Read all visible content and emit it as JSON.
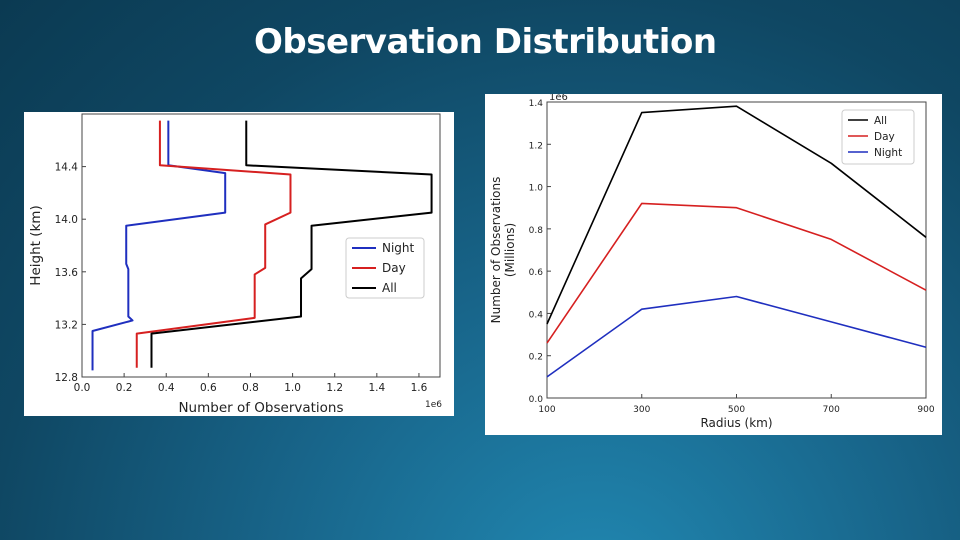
{
  "slide": {
    "title": "Observation Distribution"
  },
  "chart_data": [
    {
      "type": "line",
      "title": "",
      "xlabel": "Number of Observations",
      "ylabel": "Height (km)",
      "x_multiplier": "1e6",
      "xlim": [
        0.0,
        1.7
      ],
      "ylim": [
        12.8,
        14.8
      ],
      "xticks": [
        "0.0",
        "0.2",
        "0.4",
        "0.6",
        "0.8",
        "1.0",
        "1.2",
        "1.4",
        "1.6"
      ],
      "yticks": [
        "12.8",
        "13.2",
        "13.6",
        "14.0",
        "14.4"
      ],
      "xtick_values": [
        0.0,
        0.2,
        0.4,
        0.6,
        0.8,
        1.0,
        1.2,
        1.4,
        1.6
      ],
      "ytick_values": [
        12.8,
        13.2,
        13.6,
        14.0,
        14.4
      ],
      "grid": false,
      "legend_position": "center-right",
      "series": [
        {
          "name": "Night",
          "color": "#1f2fbf",
          "points": [
            [
              0.05,
              12.85
            ],
            [
              0.05,
              13.15
            ],
            [
              0.24,
              13.23
            ],
            [
              0.22,
              13.26
            ],
            [
              0.22,
              13.62
            ],
            [
              0.21,
              13.66
            ],
            [
              0.21,
              13.95
            ],
            [
              0.68,
              14.05
            ],
            [
              0.68,
              14.35
            ],
            [
              0.41,
              14.41
            ],
            [
              0.41,
              14.75
            ]
          ]
        },
        {
          "name": "Day",
          "color": "#d62020",
          "points": [
            [
              0.26,
              12.87
            ],
            [
              0.26,
              13.13
            ],
            [
              0.82,
              13.25
            ],
            [
              0.82,
              13.58
            ],
            [
              0.87,
              13.63
            ],
            [
              0.87,
              13.96
            ],
            [
              0.99,
              14.05
            ],
            [
              0.99,
              14.34
            ],
            [
              0.37,
              14.41
            ],
            [
              0.37,
              14.75
            ]
          ]
        },
        {
          "name": "All",
          "color": "#000000",
          "points": [
            [
              0.33,
              12.87
            ],
            [
              0.33,
              13.13
            ],
            [
              1.04,
              13.26
            ],
            [
              1.04,
              13.55
            ],
            [
              1.09,
              13.62
            ],
            [
              1.09,
              13.95
            ],
            [
              1.66,
              14.05
            ],
            [
              1.66,
              14.34
            ],
            [
              0.78,
              14.41
            ],
            [
              0.78,
              14.75
            ]
          ]
        }
      ]
    },
    {
      "type": "line",
      "title": "",
      "xlabel": "Radius (km)",
      "ylabel": "Number of Observations\n(Millions)",
      "y_multiplier": "1e6",
      "xlim": [
        100,
        900
      ],
      "ylim": [
        0.0,
        1.4
      ],
      "x": [
        100,
        300,
        500,
        700,
        900
      ],
      "xticks": [
        "100",
        "300",
        "500",
        "700",
        "900"
      ],
      "yticks": [
        "0.0",
        "0.2",
        "0.4",
        "0.6",
        "0.8",
        "1.0",
        "1.2",
        "1.4"
      ],
      "xtick_values": [
        100,
        300,
        500,
        700,
        900
      ],
      "ytick_values": [
        0.0,
        0.2,
        0.4,
        0.6,
        0.8,
        1.0,
        1.2,
        1.4
      ],
      "grid": false,
      "legend_position": "top-right",
      "series": [
        {
          "name": "All",
          "color": "#000000",
          "values": [
            0.35,
            1.35,
            1.38,
            1.11,
            0.76
          ]
        },
        {
          "name": "Day",
          "color": "#d62020",
          "values": [
            0.26,
            0.92,
            0.9,
            0.75,
            0.51
          ]
        },
        {
          "name": "Night",
          "color": "#1f2fbf",
          "values": [
            0.1,
            0.42,
            0.48,
            0.36,
            0.24
          ]
        }
      ]
    }
  ]
}
